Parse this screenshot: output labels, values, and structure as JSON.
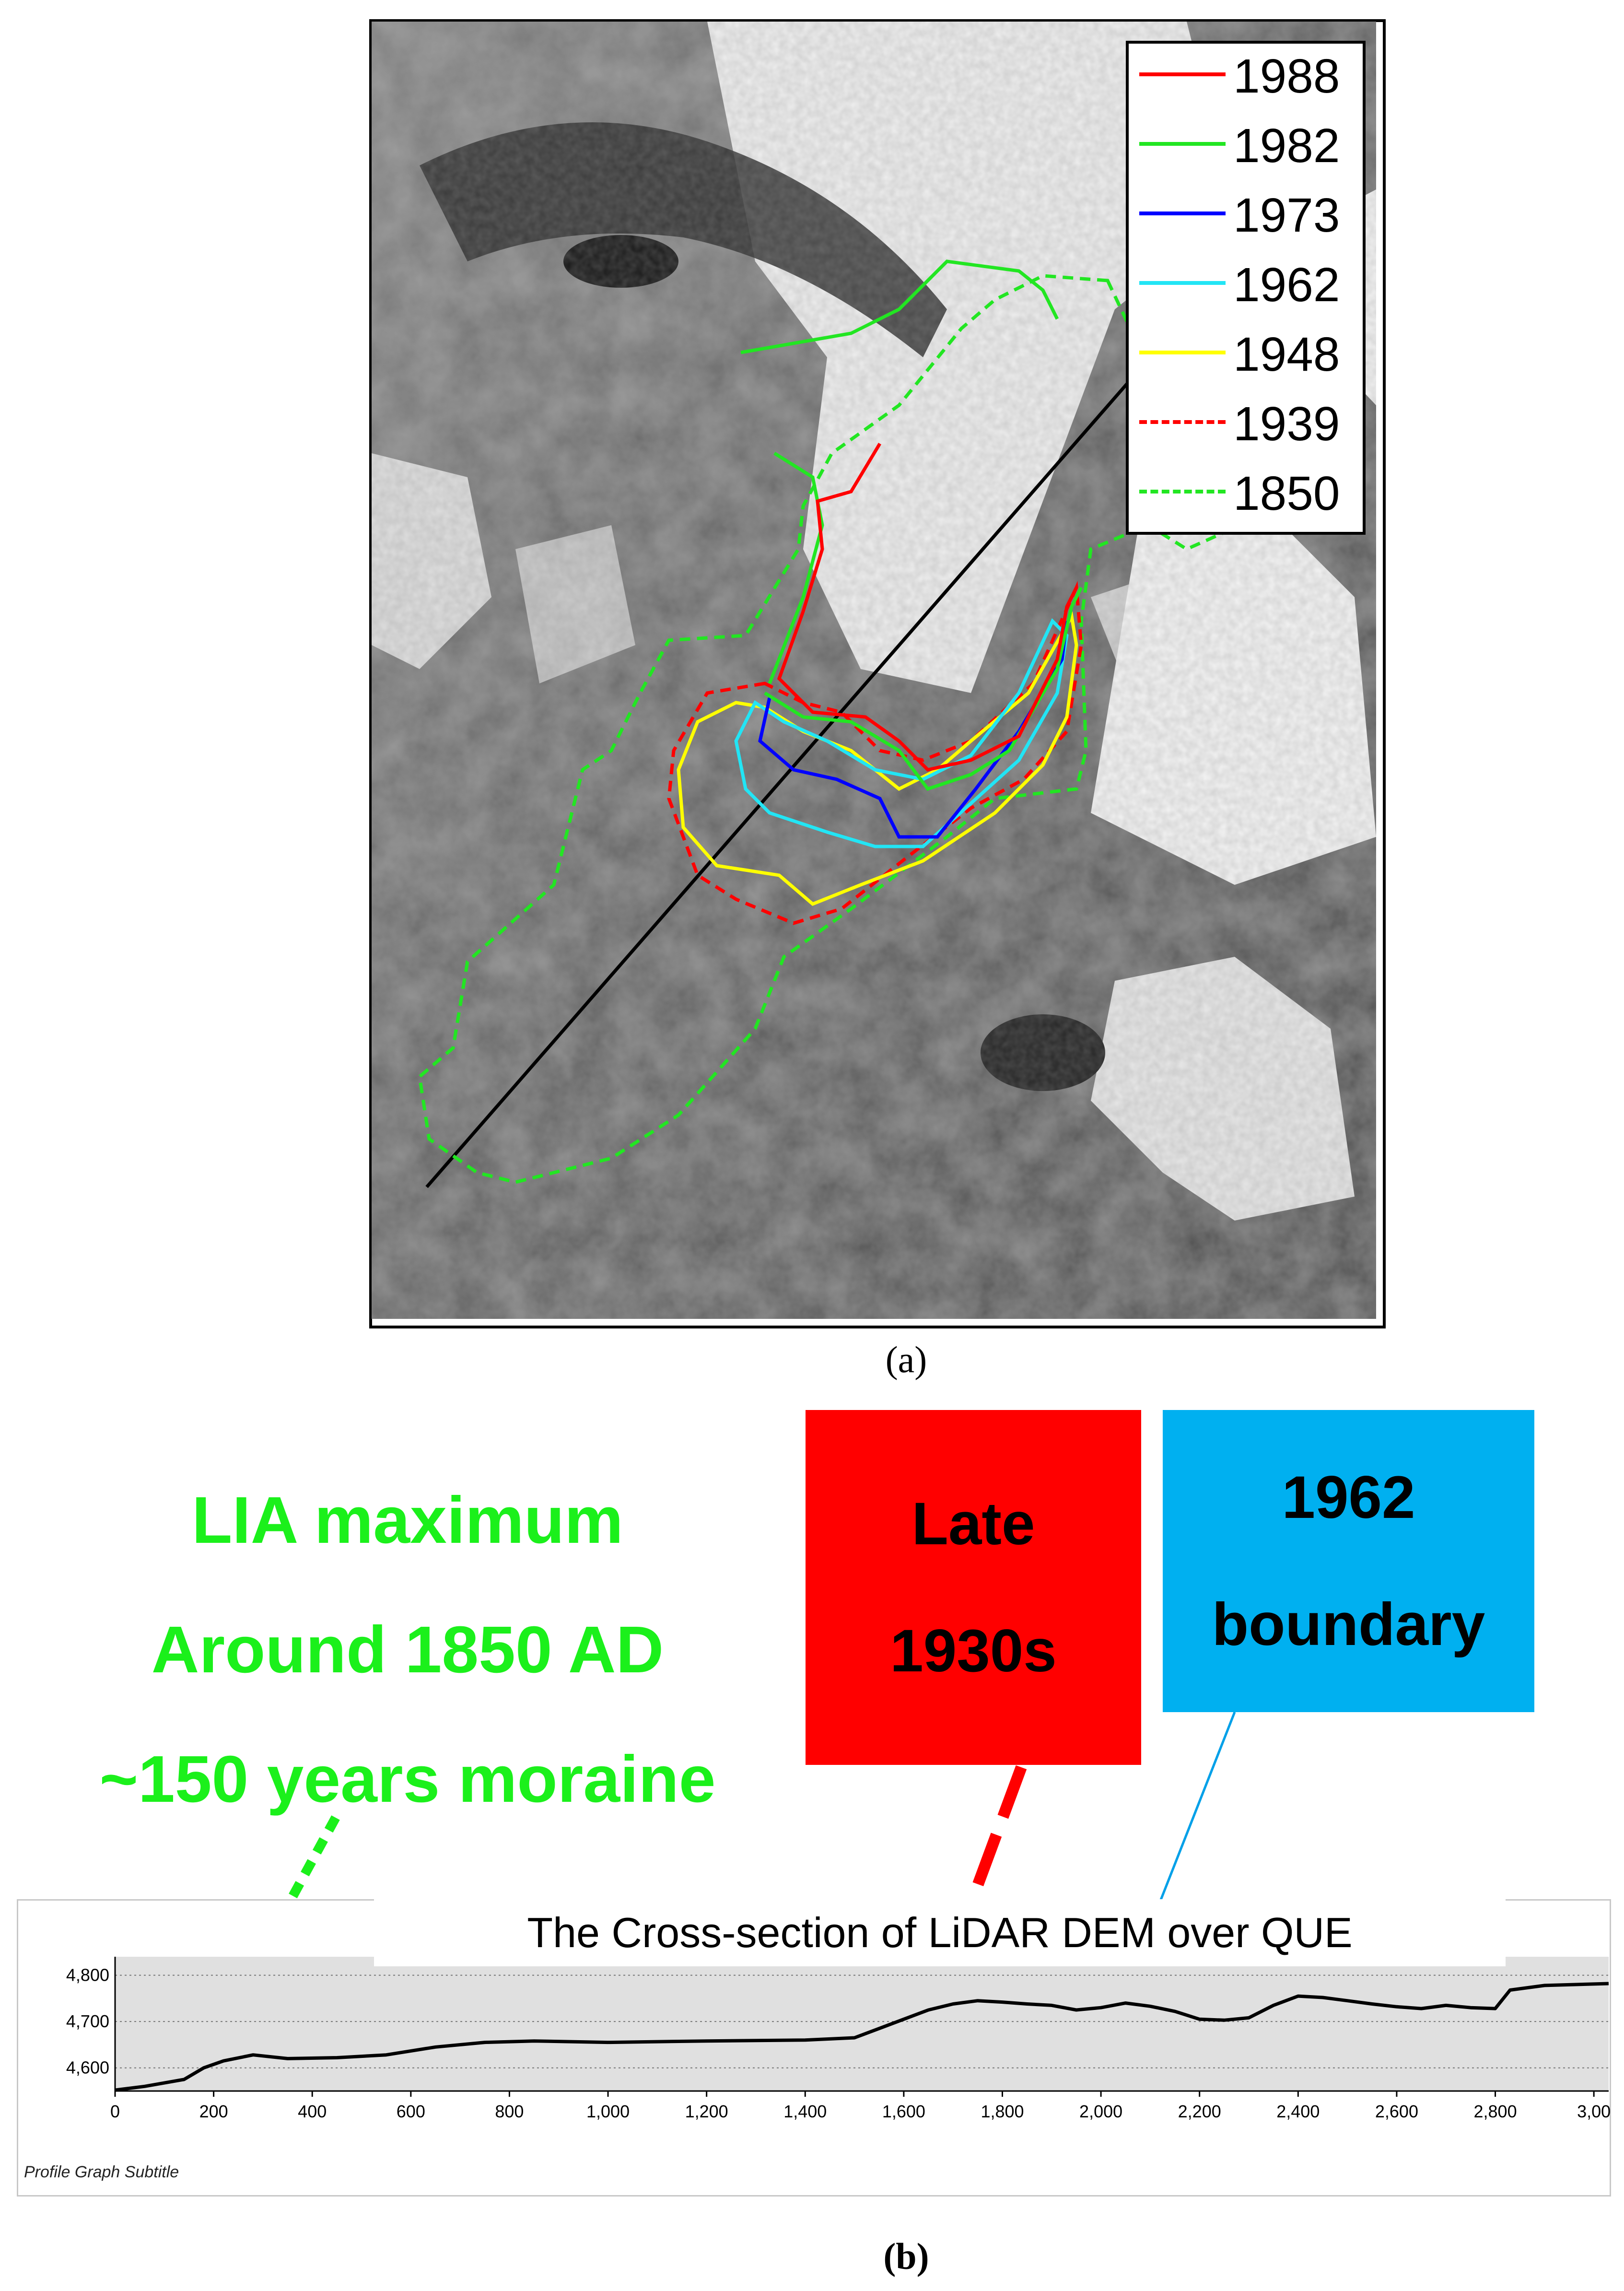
{
  "panel_a": {
    "caption": "(a)",
    "legend": [
      {
        "label": "1988",
        "color": "#ff0000",
        "style": "solid"
      },
      {
        "label": "1982",
        "color": "#22e622",
        "style": "solid"
      },
      {
        "label": "1973",
        "color": "#0000ff",
        "style": "solid"
      },
      {
        "label": "1962",
        "color": "#22e5f5",
        "style": "solid"
      },
      {
        "label": "1948",
        "color": "#ffff00",
        "style": "solid"
      },
      {
        "label": "1939",
        "color": "#ff0000",
        "style": "dashed"
      },
      {
        "label": "1850",
        "color": "#22e622",
        "style": "dashed"
      }
    ]
  },
  "panel_b": {
    "caption": "(b)",
    "annotation_lia": {
      "lines": [
        "LIA maximum",
        "Around 1850 AD",
        "~150 years moraine"
      ],
      "color": "#1bf01b"
    },
    "annotation_1930s": {
      "text": "Late\n1930s",
      "color": "#ff0000"
    },
    "annotation_1962": {
      "text": "1962\nboundary",
      "color": "#00b0f0"
    },
    "profile_title": "The Cross-section of LiDAR DEM over QUE",
    "profile_subtitle": "Profile Graph Subtitle"
  },
  "chart_data": {
    "type": "line",
    "x_ticks": [
      "0",
      "200",
      "400",
      "600",
      "800",
      "1,000",
      "1,200",
      "1,400",
      "1,600",
      "1,800",
      "2,000",
      "2,200",
      "2,400",
      "2,600",
      "2,800",
      "3,00"
    ],
    "y_ticks": [
      "4,600",
      "4,700",
      "4,800"
    ],
    "ylim": [
      4550,
      4840
    ],
    "xlim": [
      0,
      3030
    ],
    "grid": true,
    "series": [
      {
        "color": "#000000",
        "x": [
          0,
          60,
          140,
          180,
          220,
          280,
          350,
          450,
          550,
          650,
          750,
          850,
          1000,
          1200,
          1400,
          1500,
          1550,
          1600,
          1650,
          1700,
          1750,
          1800,
          1850,
          1900,
          1950,
          2000,
          2050,
          2100,
          2150,
          2200,
          2250,
          2300,
          2350,
          2400,
          2450,
          2500,
          2550,
          2600,
          2650,
          2700,
          2750,
          2800,
          2830,
          2900,
          3030
        ],
        "y": [
          4552,
          4560,
          4575,
          4600,
          4615,
          4628,
          4620,
          4622,
          4628,
          4645,
          4655,
          4658,
          4655,
          4658,
          4660,
          4665,
          4685,
          4705,
          4725,
          4738,
          4745,
          4742,
          4738,
          4735,
          4725,
          4730,
          4740,
          4733,
          4722,
          4705,
          4703,
          4708,
          4735,
          4755,
          4752,
          4745,
          4738,
          4732,
          4728,
          4735,
          4730,
          4728,
          4768,
          4778,
          4782
        ]
      }
    ]
  }
}
